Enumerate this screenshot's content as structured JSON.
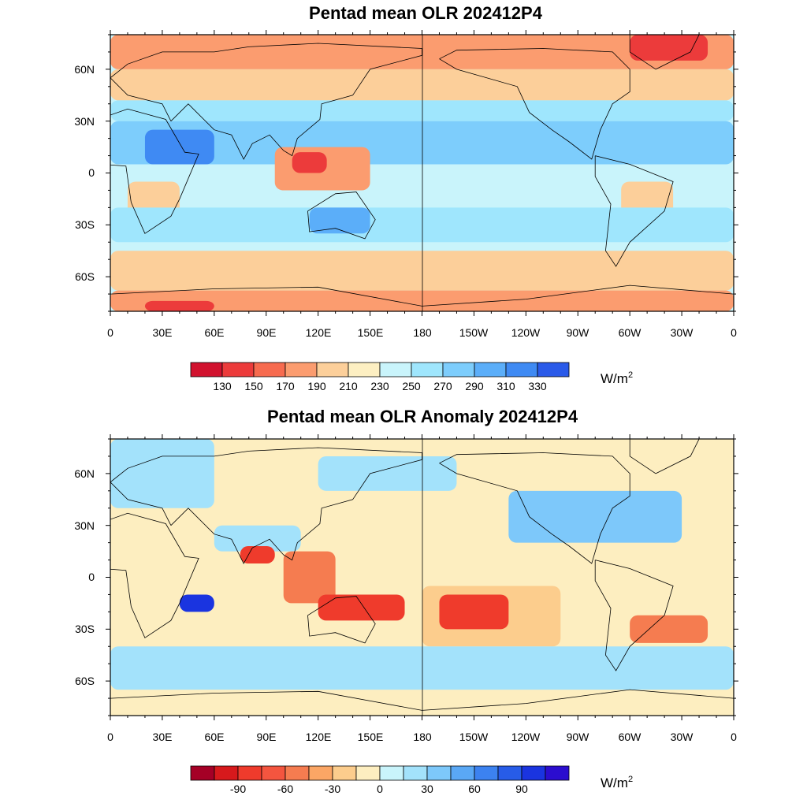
{
  "maps": [
    {
      "id": "olr",
      "title": "Pentad mean OLR 202412P4",
      "unit_base": "W/m",
      "unit_exp": "2",
      "lat_labels": [
        "60N",
        "30N",
        "0",
        "30S",
        "60S"
      ],
      "lon_labels": [
        "0",
        "30E",
        "60E",
        "90E",
        "120E",
        "150E",
        "180",
        "150W",
        "120W",
        "90W",
        "60W",
        "30W",
        "0"
      ],
      "colorbar": {
        "colors": [
          "#d1122e",
          "#ec3b3b",
          "#f76b4f",
          "#fb9c6f",
          "#fccf9a",
          "#fdefc2",
          "#c9f4fb",
          "#9fe6fd",
          "#7dcdfc",
          "#5baef9",
          "#3f8af3",
          "#2a5ae9"
        ],
        "labels": [
          "130",
          "150",
          "170",
          "190",
          "210",
          "230",
          "250",
          "270",
          "290",
          "310",
          "330"
        ]
      },
      "field": {
        "base_color": "#c9f4fb",
        "features": [
          {
            "lon": [
              0,
              360
            ],
            "lat": [
              60,
              80
            ],
            "color": "#fb9c6f"
          },
          {
            "lon": [
              0,
              360
            ],
            "lat": [
              42,
              60
            ],
            "color": "#fccf9a"
          },
          {
            "lon": [
              300,
              345
            ],
            "lat": [
              65,
              80
            ],
            "color": "#ec3b3b"
          },
          {
            "lon": [
              0,
              360
            ],
            "lat": [
              30,
              42
            ],
            "color": "#9fe6fd"
          },
          {
            "lon": [
              0,
              360
            ],
            "lat": [
              5,
              30
            ],
            "color": "#7dcdfc"
          },
          {
            "lon": [
              20,
              60
            ],
            "lat": [
              5,
              25
            ],
            "color": "#3f8af3"
          },
          {
            "lon": [
              95,
              150
            ],
            "lat": [
              -10,
              15
            ],
            "color": "#fb9c6f"
          },
          {
            "lon": [
              105,
              125
            ],
            "lat": [
              0,
              12
            ],
            "color": "#ec3b3b"
          },
          {
            "lon": [
              295,
              325
            ],
            "lat": [
              -30,
              -5
            ],
            "color": "#fccf9a"
          },
          {
            "lon": [
              10,
              40
            ],
            "lat": [
              -30,
              -5
            ],
            "color": "#fccf9a"
          },
          {
            "lon": [
              0,
              360
            ],
            "lat": [
              -40,
              -20
            ],
            "color": "#9fe6fd"
          },
          {
            "lon": [
              115,
              150
            ],
            "lat": [
              -35,
              -20
            ],
            "color": "#5baef9"
          },
          {
            "lon": [
              0,
              360
            ],
            "lat": [
              -68,
              -45
            ],
            "color": "#fccf9a"
          },
          {
            "lon": [
              0,
              360
            ],
            "lat": [
              -80,
              -68
            ],
            "color": "#fb9c6f"
          },
          {
            "lon": [
              20,
              60
            ],
            "lat": [
              -80,
              -74
            ],
            "color": "#ec3b3b"
          }
        ]
      }
    },
    {
      "id": "anom",
      "title": "Pentad mean OLR Anomaly 202412P4",
      "unit_base": "W/m",
      "unit_exp": "2",
      "lat_labels": [
        "60N",
        "30N",
        "0",
        "30S",
        "60S"
      ],
      "lon_labels": [
        "0",
        "30E",
        "60E",
        "90E",
        "120E",
        "150E",
        "180",
        "150W",
        "120W",
        "90W",
        "60W",
        "30W",
        "0"
      ],
      "colorbar": {
        "colors": [
          "#a50026",
          "#d7191c",
          "#ef3b2c",
          "#f4553f",
          "#f57c50",
          "#fba665",
          "#fccd8d",
          "#fdeec0",
          "#c9f4fb",
          "#a3e2fb",
          "#7dc8fa",
          "#5aa8f5",
          "#3c82f0",
          "#275ce8",
          "#1a34e0",
          "#2b0dcf"
        ],
        "labels": [
          "-90",
          "-60",
          "-30",
          "0",
          "30",
          "60",
          "90"
        ]
      },
      "field": {
        "base_color": "#fdeec0",
        "features": [
          {
            "lon": [
              0,
              60
            ],
            "lat": [
              40,
              80
            ],
            "color": "#a3e2fb"
          },
          {
            "lon": [
              120,
              200
            ],
            "lat": [
              50,
              70
            ],
            "color": "#a3e2fb"
          },
          {
            "lon": [
              230,
              330
            ],
            "lat": [
              20,
              50
            ],
            "color": "#7dc8fa"
          },
          {
            "lon": [
              60,
              110
            ],
            "lat": [
              15,
              30
            ],
            "color": "#a3e2fb"
          },
          {
            "lon": [
              75,
              95
            ],
            "lat": [
              8,
              18
            ],
            "color": "#ef3b2c"
          },
          {
            "lon": [
              100,
              130
            ],
            "lat": [
              -15,
              15
            ],
            "color": "#f57c50"
          },
          {
            "lon": [
              120,
              170
            ],
            "lat": [
              -25,
              -10
            ],
            "color": "#ef3b2c"
          },
          {
            "lon": [
              180,
              260
            ],
            "lat": [
              -40,
              -5
            ],
            "color": "#fccd8d"
          },
          {
            "lon": [
              190,
              230
            ],
            "lat": [
              -30,
              -10
            ],
            "color": "#ef3b2c"
          },
          {
            "lon": [
              40,
              60
            ],
            "lat": [
              -20,
              -10
            ],
            "color": "#1a34e0"
          },
          {
            "lon": [
              0,
              360
            ],
            "lat": [
              -65,
              -40
            ],
            "color": "#a3e2fb"
          },
          {
            "lon": [
              300,
              345
            ],
            "lat": [
              -38,
              -22
            ],
            "color": "#f57c50"
          }
        ]
      }
    }
  ]
}
